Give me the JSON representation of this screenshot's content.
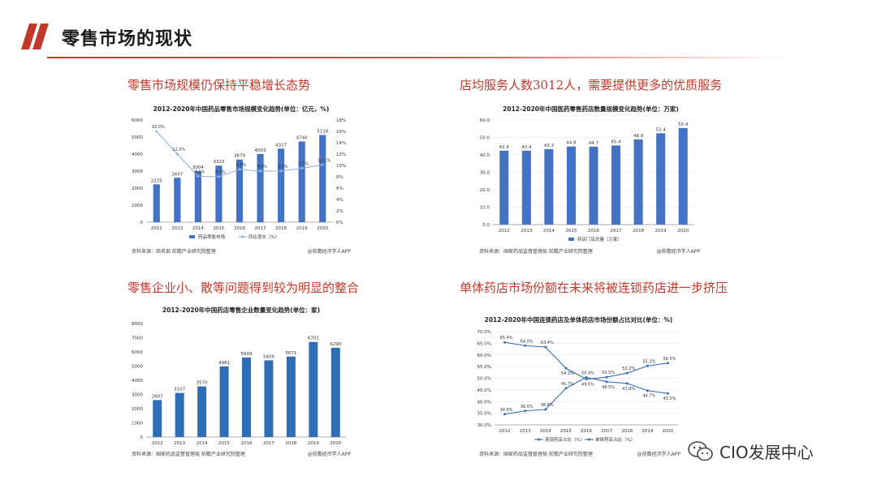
{
  "page": {
    "title": "零售市场的现状",
    "accent": "#c0392b",
    "watermark": "CIO发展中心"
  },
  "panels": [
    {
      "heading": "零售市场规模仍保持平稳增长态势",
      "source": "资料来源：商务部 前瞻产业研究院整理",
      "credit": "@前瞻经济学人APP"
    },
    {
      "heading": "店均服务人数3012人，需要提供更多的优质服务",
      "source": "资料来源：国家药品监督管理局 前瞻产业研究院整理",
      "credit": "@前瞻经济学人APP"
    },
    {
      "heading": "零售企业小、散等问题得到较为明显的整合",
      "source": "资料来源：国家药品监督管理局 前瞻产业研究院整理",
      "credit": "@前瞻经济学人APP"
    },
    {
      "heading": "单体药店市场份额在未来将被连锁药店进一步挤压",
      "source": "资料来源：国家药品监督管理局 前瞻产业研究院整理",
      "credit": "@前瞻经济学人APP"
    }
  ],
  "chart_data": [
    {
      "type": "bar",
      "title": "2012-2020年中国药品零售市场规模变化趋势(单位：亿元，%)",
      "categories": [
        "2012",
        "2013",
        "2014",
        "2015",
        "2016",
        "2017",
        "2018",
        "2019",
        "2020"
      ],
      "ylim": [
        0,
        6000
      ],
      "yticks": [
        "0",
        "1000",
        "2000",
        "3000",
        "4000",
        "5000",
        "6000"
      ],
      "y2lim": [
        0,
        18
      ],
      "y2ticks": [
        "0%",
        "2%",
        "4%",
        "6%",
        "8%",
        "10%",
        "12%",
        "14%",
        "16%",
        "18%"
      ],
      "series": [
        {
          "name": "药品零售市场",
          "kind": "bar",
          "values": [
            2225,
            2607,
            3004,
            3323,
            3679,
            4003,
            4317,
            4740,
            5119
          ],
          "labels": [
            "2225",
            "2607",
            "3004",
            "3323",
            "3679",
            "4003",
            "4317",
            "4740",
            "5119"
          ]
        },
        {
          "name": "同比增长（%）",
          "kind": "line",
          "axis": "right",
          "values": [
            16.0,
            12.0,
            8.1,
            8.0,
            9.3,
            9.0,
            9.0,
            9.5,
            10.1
          ],
          "labels": [
            "16.0%",
            "12.0%",
            "8.1%",
            "8.0%",
            "9.3%",
            "9.0%",
            "9.0%",
            "9.5%",
            "10.1%"
          ]
        }
      ],
      "legend": [
        "药品零售市场",
        "同比增长（%）"
      ]
    },
    {
      "type": "bar",
      "title": "2012-2020年中国医药零售药店数量规模变化趋势(单位：万家)",
      "categories": [
        "2012",
        "2013",
        "2014",
        "2015",
        "2016",
        "2017",
        "2018",
        "2019",
        "2020"
      ],
      "ylim": [
        0,
        60
      ],
      "yticks": [
        "0.0",
        "10.0",
        "20.0",
        "30.0",
        "40.0",
        "50.0",
        "60.0"
      ],
      "series": [
        {
          "name": "药店门店总量（万家）",
          "kind": "bar",
          "values": [
            42.4,
            42.4,
            43.3,
            44.8,
            44.7,
            45.4,
            48.9,
            52.4,
            55.4
          ],
          "labels": [
            "42.4",
            "42.4",
            "43.3",
            "44.8",
            "44.7",
            "45.4",
            "48.9",
            "52.4",
            "55.4"
          ]
        }
      ],
      "legend": [
        "药店门店总量（万家）"
      ]
    },
    {
      "type": "bar",
      "title": "2012-2020年中国药店零售企业数量变化趋势(单位：家)",
      "categories": [
        "2012",
        "2013",
        "2014",
        "2015",
        "2016",
        "2017",
        "2018",
        "2019",
        "2020"
      ],
      "ylim": [
        0,
        8000
      ],
      "yticks": [
        "0",
        "1000",
        "2000",
        "3000",
        "4000",
        "5000",
        "6000",
        "7000",
        "8000"
      ],
      "series": [
        {
          "name": "零售企业数量",
          "kind": "bar",
          "values": [
            2607,
            3107,
            3570,
            4981,
            5609,
            5409,
            5671,
            6701,
            6290
          ],
          "labels": [
            "2607",
            "3107",
            "3570",
            "4981",
            "5609",
            "5409",
            "5671",
            "6701",
            "6290"
          ]
        }
      ],
      "legend": []
    },
    {
      "type": "line",
      "title": "2012-2020年中国连锁药店及单体药店市场份额占比对比(单位：%)",
      "categories": [
        "2012",
        "2013",
        "2014",
        "2015",
        "2016",
        "2017",
        "2018",
        "2019",
        "2020"
      ],
      "ylim": [
        30,
        70
      ],
      "yticks": [
        "30.0%",
        "35.0%",
        "40.0%",
        "45.0%",
        "50.0%",
        "55.0%",
        "60.0%",
        "65.0%",
        "70.0%"
      ],
      "series": [
        {
          "name": "连锁药店占比（%）",
          "kind": "line",
          "values": [
            34.6,
            36.0,
            36.6,
            45.7,
            50.4,
            48.5,
            47.8,
            44.7,
            43.5
          ],
          "labels": [
            "34.6%",
            "36.0%",
            "36.6%",
            "45.7%",
            "50.4%",
            "48.5%",
            "47.8%",
            "44.7%",
            "43.5%"
          ]
        },
        {
          "name": "单体药店占比（%）",
          "kind": "line",
          "values": [
            65.4,
            64.0,
            63.4,
            54.3,
            49.6,
            50.5,
            52.2,
            55.3,
            56.5
          ],
          "labels": [
            "65.4%",
            "64.0%",
            "63.4%",
            "54.3%",
            "49.6%",
            "50.5%",
            "52.2%",
            "55.3%",
            "56.5%"
          ]
        }
      ],
      "legend": [
        "连锁药店占比（%）",
        "单体药店占比（%）"
      ]
    }
  ]
}
